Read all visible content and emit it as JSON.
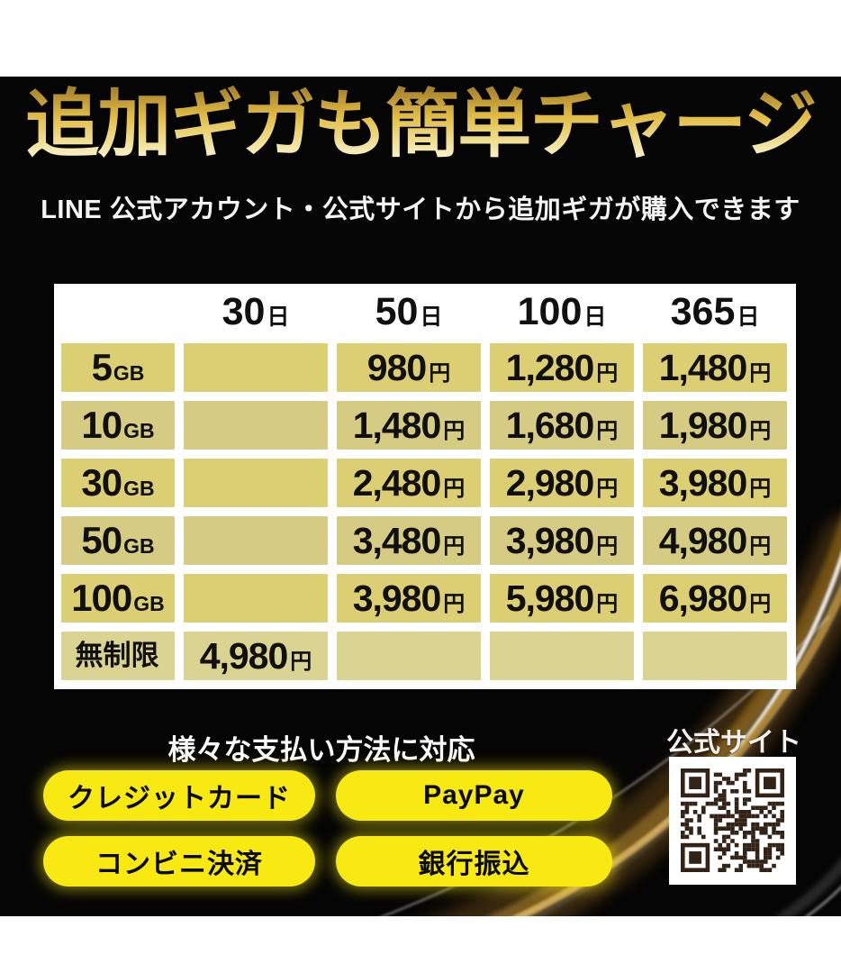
{
  "header": {
    "title": "追加ギガも簡単チャージ",
    "subtitle": "LINE 公式アカウント・公式サイトから追加ギガが購入できます"
  },
  "pricing_table": {
    "columns": [
      {
        "num": "30",
        "unit": "日"
      },
      {
        "num": "50",
        "unit": "日"
      },
      {
        "num": "100",
        "unit": "日"
      },
      {
        "num": "365",
        "unit": "日"
      }
    ],
    "rows": [
      {
        "label": {
          "num": "5",
          "unit": "GB"
        },
        "cells": [
          {
            "num": "",
            "unit": ""
          },
          {
            "num": "980",
            "unit": "円"
          },
          {
            "num": "1,280",
            "unit": "円"
          },
          {
            "num": "1,480",
            "unit": "円"
          }
        ]
      },
      {
        "label": {
          "num": "10",
          "unit": "GB"
        },
        "cells": [
          {
            "num": "",
            "unit": ""
          },
          {
            "num": "1,480",
            "unit": "円"
          },
          {
            "num": "1,680",
            "unit": "円"
          },
          {
            "num": "1,980",
            "unit": "円"
          }
        ]
      },
      {
        "label": {
          "num": "30",
          "unit": "GB"
        },
        "cells": [
          {
            "num": "",
            "unit": ""
          },
          {
            "num": "2,480",
            "unit": "円"
          },
          {
            "num": "2,980",
            "unit": "円"
          },
          {
            "num": "3,980",
            "unit": "円"
          }
        ]
      },
      {
        "label": {
          "num": "50",
          "unit": "GB"
        },
        "cells": [
          {
            "num": "",
            "unit": ""
          },
          {
            "num": "3,480",
            "unit": "円"
          },
          {
            "num": "3,980",
            "unit": "円"
          },
          {
            "num": "4,980",
            "unit": "円"
          }
        ]
      },
      {
        "label": {
          "num": "100",
          "unit": "GB"
        },
        "cells": [
          {
            "num": "",
            "unit": ""
          },
          {
            "num": "3,980",
            "unit": "円"
          },
          {
            "num": "5,980",
            "unit": "円"
          },
          {
            "num": "6,980",
            "unit": "円"
          }
        ]
      },
      {
        "label": {
          "num": "無制限",
          "unit": ""
        },
        "cells": [
          {
            "num": "4,980",
            "unit": "円"
          },
          {
            "num": "",
            "unit": ""
          },
          {
            "num": "",
            "unit": ""
          },
          {
            "num": "",
            "unit": ""
          }
        ]
      }
    ]
  },
  "payments": {
    "heading": "様々な支払い方法に対応",
    "methods": [
      {
        "label": "クレジットカード"
      },
      {
        "label": "PayPay"
      },
      {
        "label": "コンビニ決済"
      },
      {
        "label": "銀行振込"
      }
    ]
  },
  "official_site": {
    "label": "公式サイト"
  },
  "colors": {
    "background": "#050505",
    "accent_yellow": "#f8e912",
    "table_cell_khaki": "#d9cd7c",
    "title_gold": "#e2bd45",
    "qr_module": "#332317",
    "streak_amber": "#8a6216"
  }
}
